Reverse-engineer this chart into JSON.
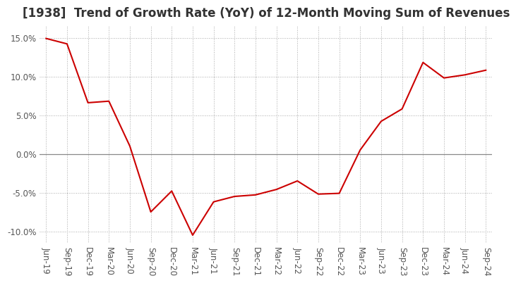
{
  "title": "[1938]  Trend of Growth Rate (YoY) of 12-Month Moving Sum of Revenues",
  "x_labels": [
    "Jun-19",
    "Sep-19",
    "Dec-19",
    "Mar-20",
    "Jun-20",
    "Sep-20",
    "Dec-20",
    "Mar-21",
    "Jun-21",
    "Sep-21",
    "Dec-21",
    "Mar-22",
    "Jun-22",
    "Sep-22",
    "Dec-22",
    "Mar-23",
    "Jun-23",
    "Sep-23",
    "Dec-23",
    "Mar-24",
    "Jun-24",
    "Sep-24"
  ],
  "y_values": [
    14.9,
    14.2,
    6.6,
    6.8,
    1.0,
    -7.5,
    -4.8,
    -10.5,
    -6.2,
    -5.5,
    -5.3,
    -4.6,
    -3.5,
    -5.2,
    -5.1,
    0.5,
    4.2,
    5.8,
    11.8,
    9.8,
    10.2,
    10.8
  ],
  "line_color": "#cc0000",
  "ylim": [
    -11.5,
    16.5
  ],
  "yticks": [
    -10.0,
    -5.0,
    0.0,
    5.0,
    10.0,
    15.0
  ],
  "background_color": "#ffffff",
  "grid_color": "#aaaaaa",
  "zero_line_color": "#888888",
  "title_fontsize": 12,
  "tick_fontsize": 8.5,
  "title_color": "#333333",
  "tick_color": "#555555"
}
